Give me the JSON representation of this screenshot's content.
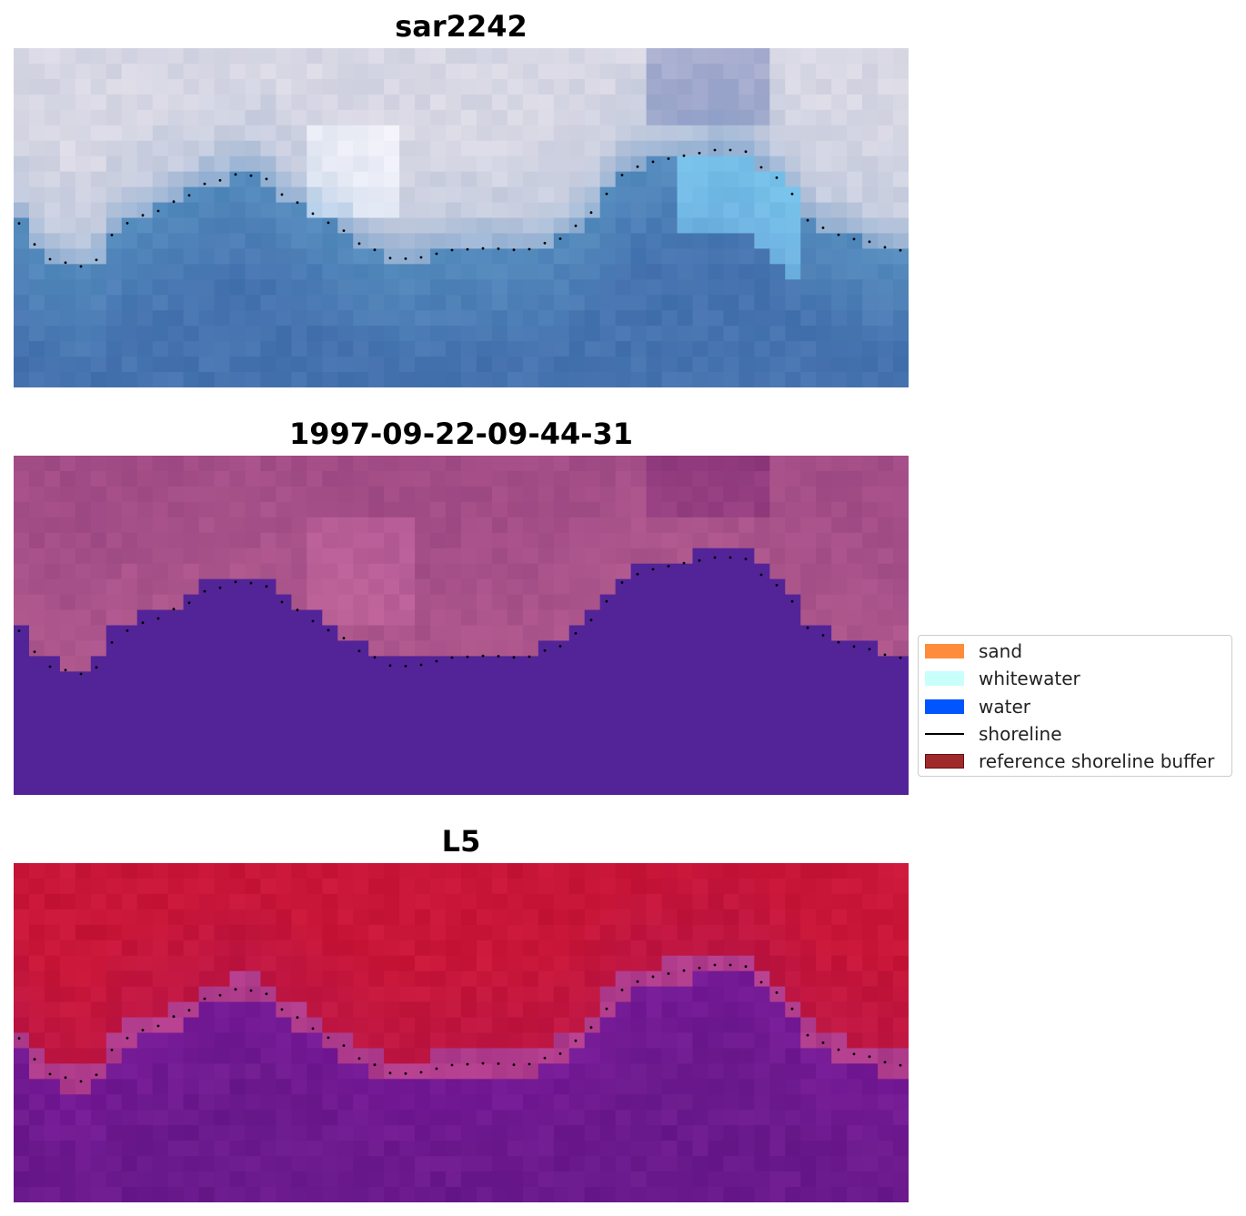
{
  "panels": [
    {
      "title": "sar2242",
      "palette": "rgb"
    },
    {
      "title": "1997-09-22-09-44-31",
      "palette": "classified"
    },
    {
      "title": "L5",
      "palette": "index"
    }
  ],
  "legend": {
    "items": [
      {
        "label": "sand",
        "color": "#ff8c3a",
        "kind": "patch"
      },
      {
        "label": "whitewater",
        "color": "#c8fffb",
        "kind": "patch"
      },
      {
        "label": "water",
        "color": "#0055ff",
        "kind": "patch"
      },
      {
        "label": "shoreline",
        "color": "#000000",
        "kind": "line"
      },
      {
        "label": "reference shoreline buffer",
        "color": "#9e2a2b",
        "border": "#6b0f10",
        "kind": "patch"
      }
    ]
  }
}
